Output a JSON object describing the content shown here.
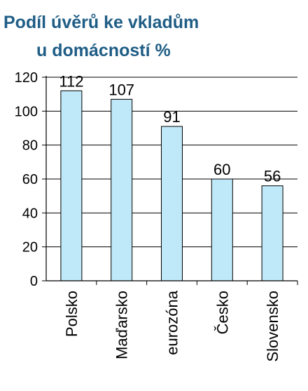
{
  "chart_data": {
    "type": "bar",
    "title_lines": [
      "Podíl úvěrů ke vkladům",
      "u domácností %"
    ],
    "categories": [
      "Polsko",
      "Maďarsko",
      "eurozóna",
      "Česko",
      "Slovensko"
    ],
    "values": [
      112,
      107,
      91,
      60,
      56
    ],
    "data_labels": [
      "112",
      "107",
      "91",
      "60",
      "56"
    ],
    "ylim": [
      0,
      120
    ],
    "yticks": [
      "0",
      "20",
      "40",
      "60",
      "80",
      "100",
      "120"
    ],
    "grid": true,
    "bar_color": "#bfe9f8",
    "bar_edge_color": "#000000",
    "title_color": "#1f5d86"
  }
}
